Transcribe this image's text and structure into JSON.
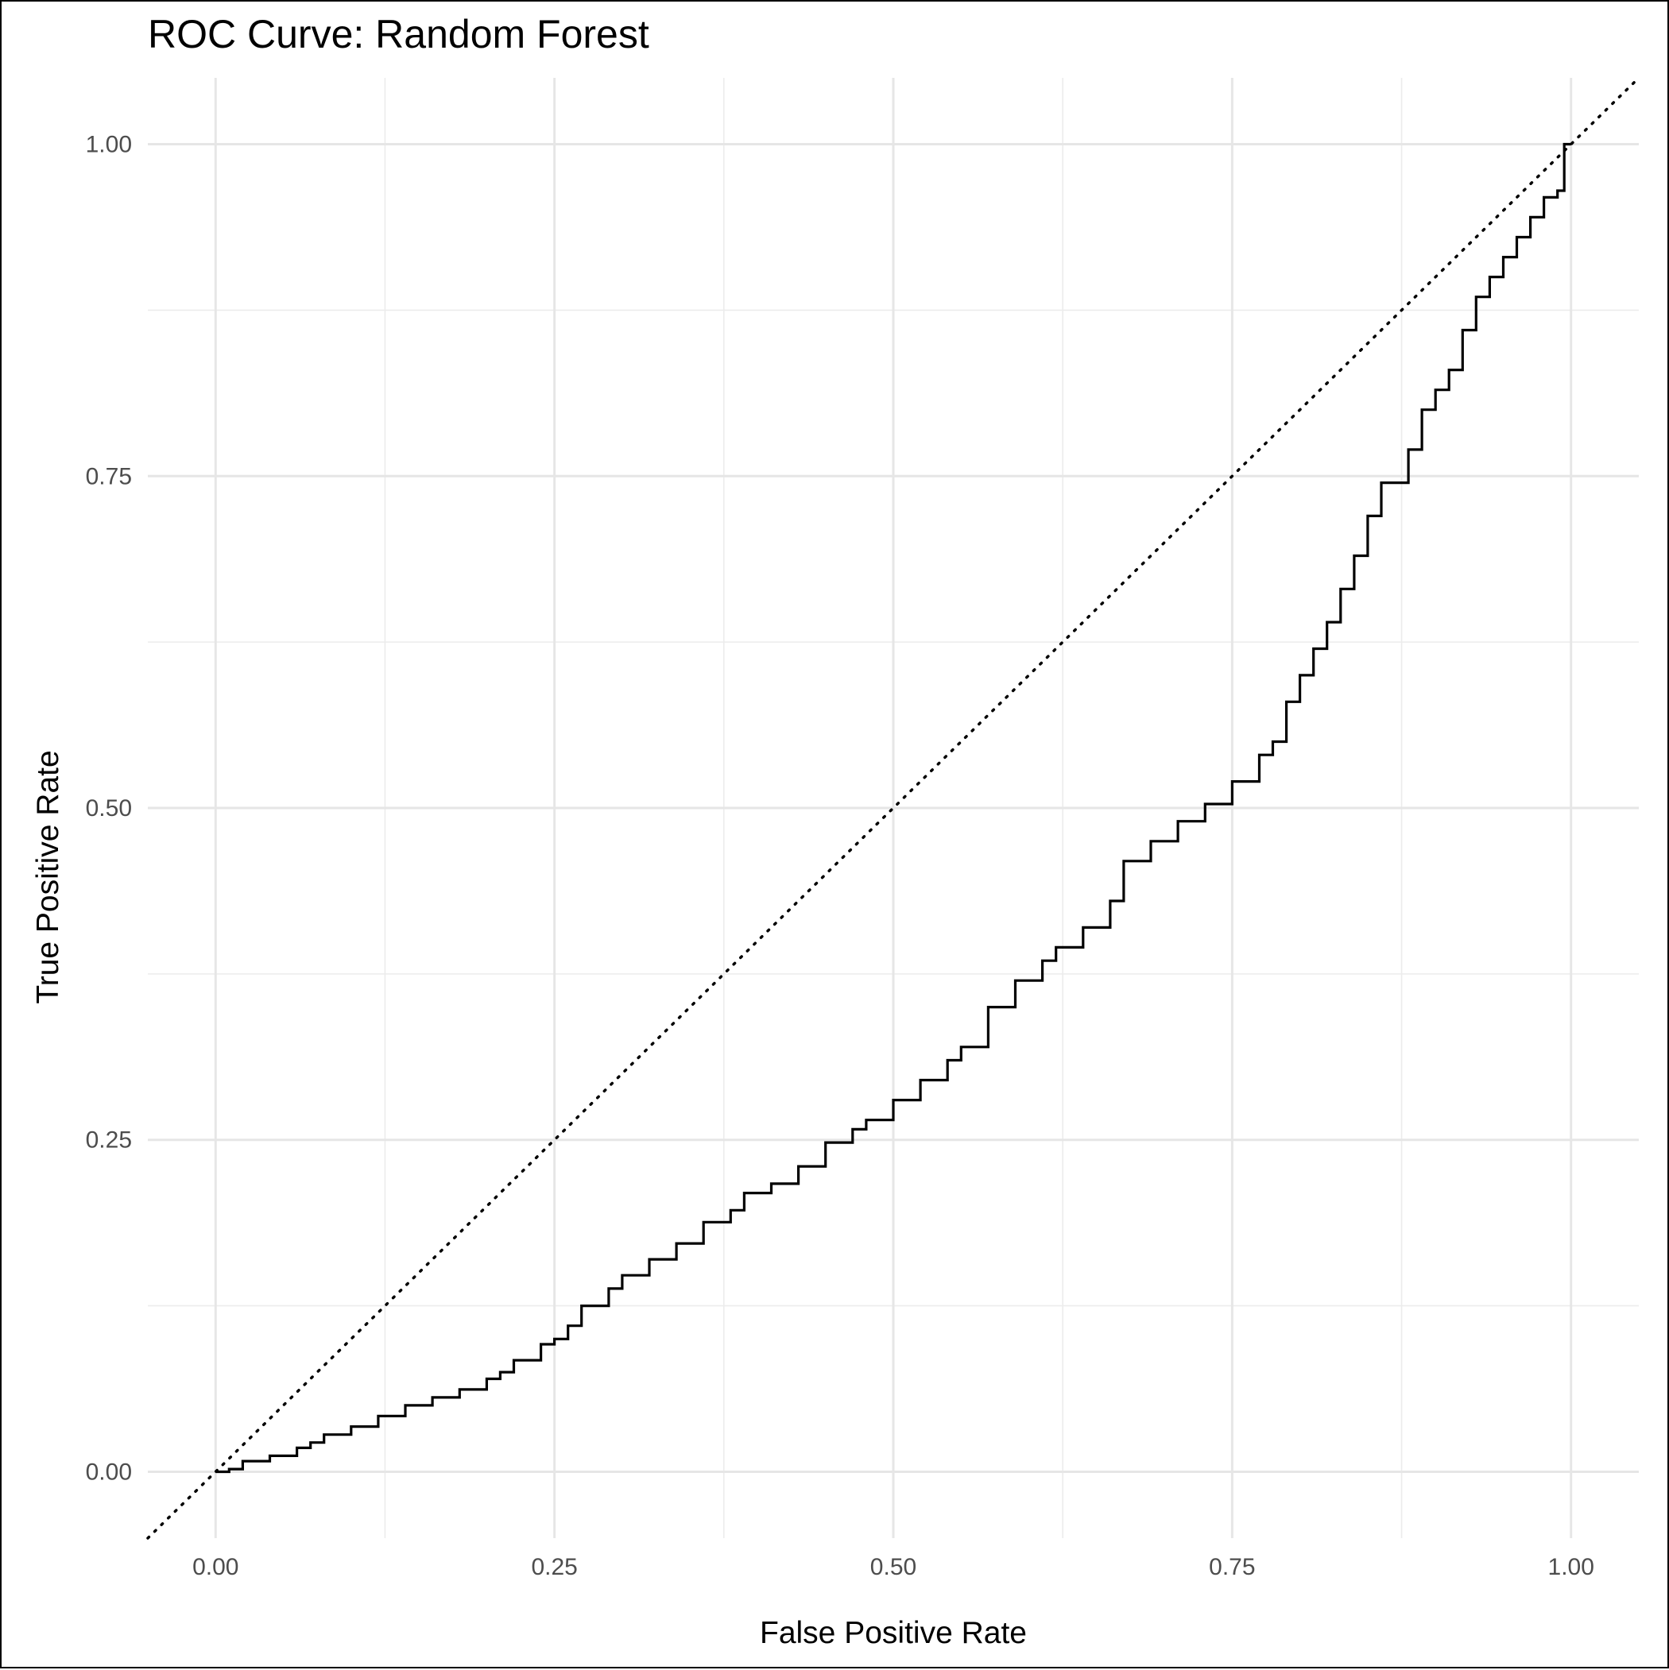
{
  "chart_data": {
    "type": "line",
    "title": "ROC Curve: Random Forest",
    "xlabel": "False Positive Rate",
    "ylabel": "True Positive Rate",
    "xlim": [
      -0.05,
      1.05
    ],
    "ylim": [
      -0.05,
      1.05
    ],
    "x_ticks": [
      0.0,
      0.25,
      0.5,
      0.75,
      1.0
    ],
    "x_tick_labels": [
      "0.00",
      "0.25",
      "0.50",
      "0.75",
      "1.00"
    ],
    "y_ticks": [
      0.0,
      0.25,
      0.5,
      0.75,
      1.0
    ],
    "y_tick_labels": [
      "0.00",
      "0.25",
      "0.50",
      "0.75",
      "1.00"
    ],
    "grid": true,
    "legend": "none",
    "reference_line": {
      "style": "dotted",
      "slope": 1,
      "intercept": 0
    },
    "series": [
      {
        "line_color": "#000000",
        "x": [
          0.0,
          0.01,
          0.02,
          0.04,
          0.06,
          0.07,
          0.08,
          0.1,
          0.12,
          0.14,
          0.16,
          0.18,
          0.2,
          0.21,
          0.22,
          0.24,
          0.25,
          0.26,
          0.27,
          0.29,
          0.3,
          0.32,
          0.34,
          0.36,
          0.38,
          0.39,
          0.41,
          0.43,
          0.45,
          0.47,
          0.48,
          0.5,
          0.52,
          0.54,
          0.55,
          0.57,
          0.59,
          0.61,
          0.62,
          0.64,
          0.66,
          0.67,
          0.69,
          0.71,
          0.73,
          0.75,
          0.77,
          0.78,
          0.79,
          0.8,
          0.81,
          0.82,
          0.83,
          0.84,
          0.85,
          0.86,
          0.88,
          0.89,
          0.9,
          0.91,
          0.92,
          0.93,
          0.94,
          0.95,
          0.96,
          0.97,
          0.98,
          0.99,
          0.995,
          1.0
        ],
        "y": [
          0.0,
          0.002,
          0.008,
          0.012,
          0.018,
          0.022,
          0.028,
          0.034,
          0.042,
          0.05,
          0.056,
          0.062,
          0.07,
          0.075,
          0.084,
          0.096,
          0.1,
          0.11,
          0.125,
          0.138,
          0.148,
          0.16,
          0.172,
          0.188,
          0.197,
          0.21,
          0.217,
          0.23,
          0.248,
          0.258,
          0.265,
          0.28,
          0.295,
          0.31,
          0.32,
          0.35,
          0.37,
          0.385,
          0.395,
          0.41,
          0.43,
          0.46,
          0.475,
          0.49,
          0.503,
          0.52,
          0.54,
          0.55,
          0.58,
          0.6,
          0.62,
          0.64,
          0.665,
          0.69,
          0.72,
          0.745,
          0.77,
          0.8,
          0.815,
          0.83,
          0.86,
          0.885,
          0.9,
          0.915,
          0.93,
          0.945,
          0.96,
          0.965,
          1.0,
          1.0
        ]
      }
    ]
  }
}
